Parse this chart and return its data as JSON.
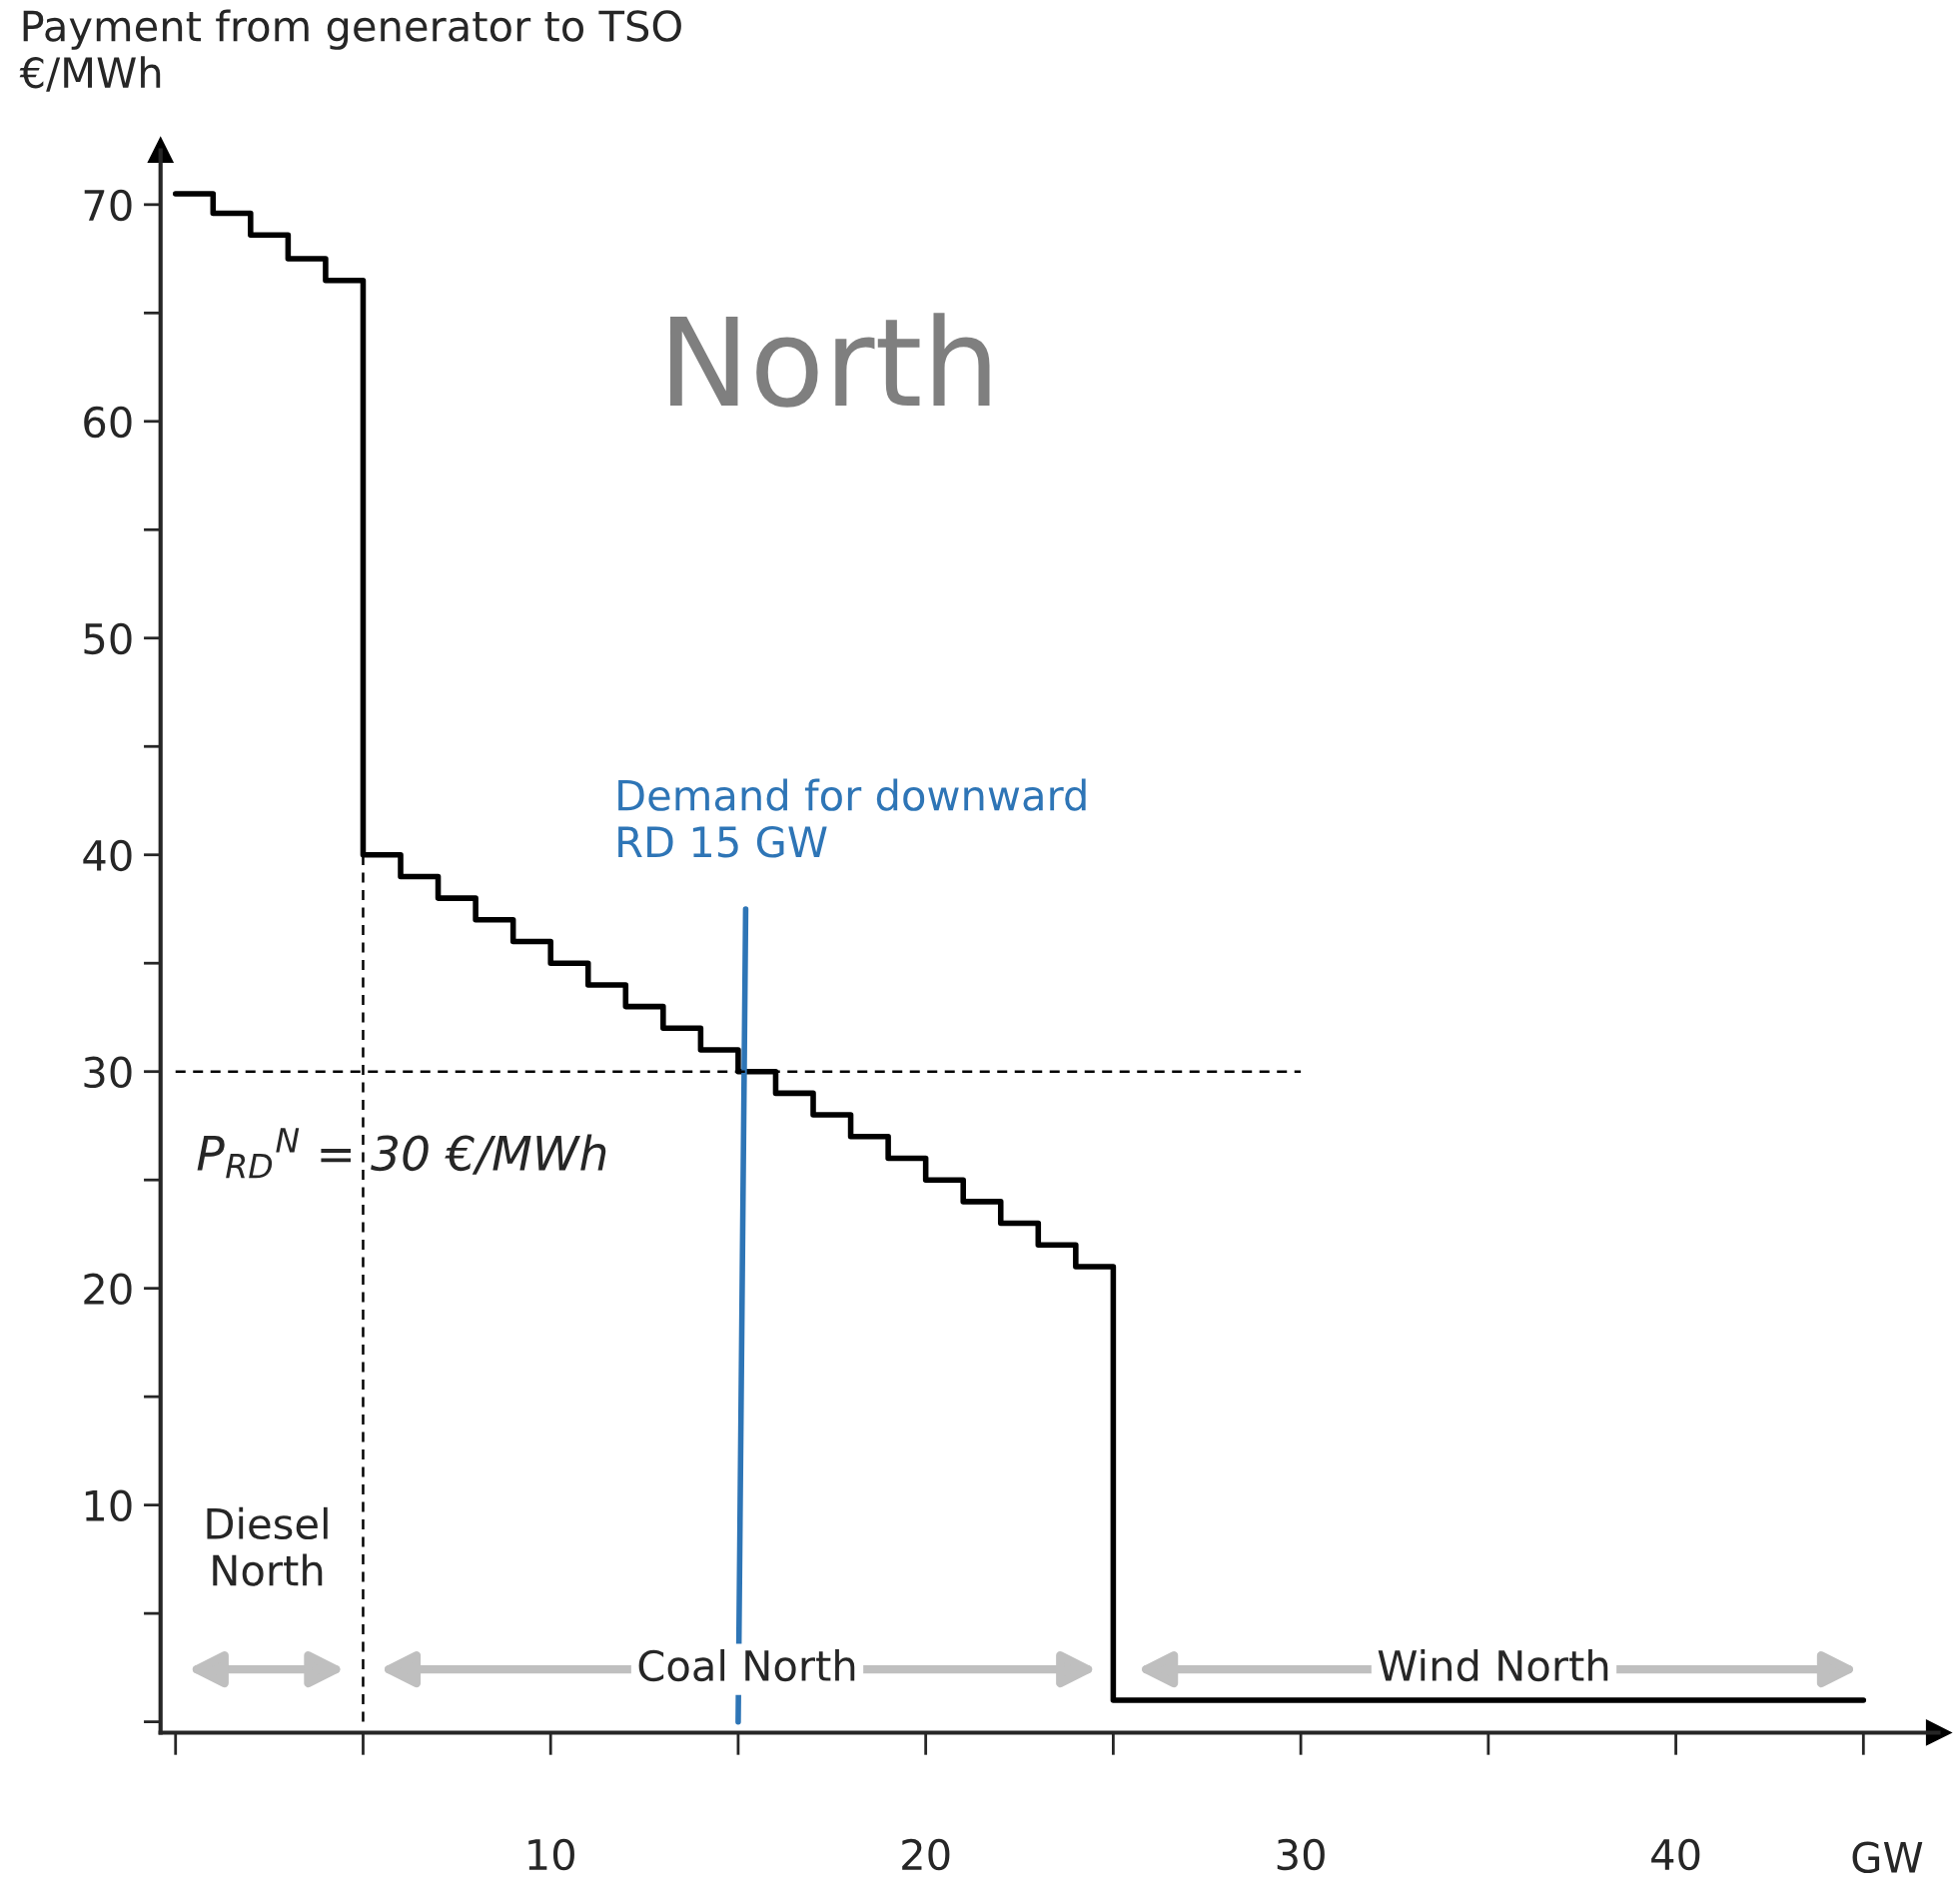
{
  "chart_data": {
    "type": "step",
    "title": "North",
    "ylabel": "Payment from generator to TSO\n€/MWh",
    "xlabel": "GW",
    "series": [
      {
        "color": "#000000",
        "x": [
          0,
          1,
          2,
          3,
          4,
          5,
          6,
          7,
          8,
          9,
          10,
          11,
          12,
          13,
          14,
          15,
          16,
          17,
          18,
          19,
          20,
          21,
          22,
          23,
          24,
          25,
          45
        ],
        "values": [
          70.5,
          69.6,
          68.6,
          67.5,
          66.5,
          40,
          39,
          38,
          37,
          36,
          35,
          34,
          33,
          32,
          31,
          30,
          29,
          28,
          27,
          26,
          25,
          24,
          23,
          22,
          21,
          1,
          1
        ]
      },
      {
        "type": "line",
        "name": "Demand for downward\nRD 15 GW",
        "color": "#2e75b6",
        "x": [
          15,
          15.2
        ],
        "values": [
          0,
          37.5
        ]
      },
      {
        "type": "line",
        "line_style": "dashed",
        "color": "#000000",
        "x": [
          0,
          30
        ],
        "values": [
          30,
          30
        ]
      },
      {
        "type": "line",
        "line_style": "dashed",
        "color": "#000000",
        "x": [
          5,
          5
        ],
        "values": [
          0,
          40
        ]
      }
    ],
    "annotations": [
      "P$_{RD}$$^{N}$ = 30 €/MWh",
      "Diesel\nNorth",
      "Coal North",
      "Wind North"
    ],
    "xlim": [
      -0.4,
      47
    ],
    "ylim": [
      -0.5,
      72.5
    ],
    "xticks": [
      {
        "value": 0,
        "label": null
      },
      {
        "value": 5,
        "label": null
      },
      10,
      {
        "value": 15,
        "label": null
      },
      20,
      {
        "value": 25,
        "label": null
      },
      30,
      {
        "value": 35,
        "label": null
      },
      40,
      {
        "value": 45,
        "label": null
      }
    ],
    "yticks": [
      {
        "value": 0,
        "label": null
      },
      {
        "value": 5,
        "label": null
      },
      10,
      {
        "value": 15,
        "label": null
      },
      20,
      {
        "value": 25,
        "label": null
      },
      30,
      {
        "value": 35,
        "label": null
      },
      40,
      {
        "value": 45,
        "label": null
      },
      50,
      {
        "value": 55,
        "label": null
      },
      60,
      {
        "value": 65,
        "label": null
      },
      70
    ],
    "grid": false,
    "legend": false
  }
}
